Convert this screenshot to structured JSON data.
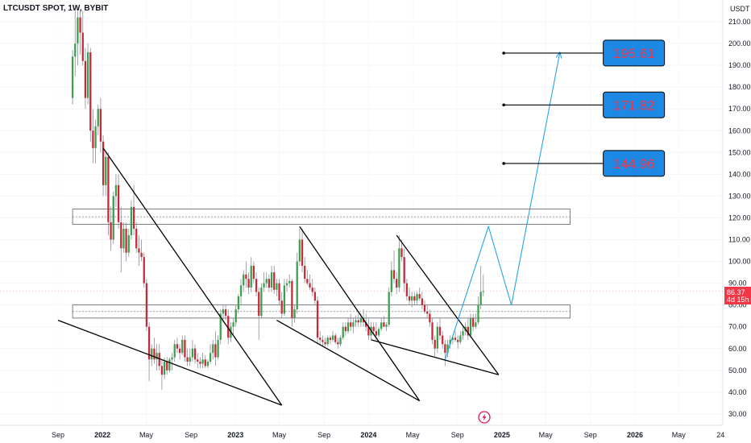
{
  "header": {
    "title": "LTCUSDT SPOT, 1W, BYBIT",
    "currency": "USDT"
  },
  "price_tag": {
    "price": "86.37",
    "countdown": "4d 15h",
    "color": "#f23645"
  },
  "colors": {
    "up": "#26a69a",
    "up_body": "#3aa04d",
    "down": "#c62a3a",
    "projection": "#29a3e6",
    "target_box": "#1e88e5",
    "target_text": "#f23645"
  },
  "chart_data": {
    "type": "candlestick",
    "title": "LTCUSDT SPOT, 1W, BYBIT",
    "ylabel": "USDT",
    "ylim": [
      25,
      215
    ],
    "y_ticks": [
      "30.00",
      "40.00",
      "50.00",
      "60.00",
      "70.00",
      "80.00",
      "90.00",
      "100.00",
      "110.00",
      "120.00",
      "130.00",
      "140.00",
      "150.00",
      "160.00",
      "170.00",
      "180.00",
      "190.00",
      "200.00",
      "210.00"
    ],
    "x_ticks": [
      {
        "label": "Sep",
        "date": "2021-09-01",
        "bold": false
      },
      {
        "label": "2022",
        "date": "2022-01-01",
        "bold": true
      },
      {
        "label": "May",
        "date": "2022-05-01",
        "bold": false
      },
      {
        "label": "Sep",
        "date": "2022-09-01",
        "bold": false
      },
      {
        "label": "2023",
        "date": "2023-01-01",
        "bold": true
      },
      {
        "label": "May",
        "date": "2023-05-01",
        "bold": false
      },
      {
        "label": "Sep",
        "date": "2023-09-01",
        "bold": false
      },
      {
        "label": "2024",
        "date": "2024-01-01",
        "bold": true
      },
      {
        "label": "May",
        "date": "2024-05-01",
        "bold": false
      },
      {
        "label": "Sep",
        "date": "2024-09-01",
        "bold": false
      },
      {
        "label": "2025",
        "date": "2025-01-01",
        "bold": true
      },
      {
        "label": "May",
        "date": "2025-05-01",
        "bold": false
      },
      {
        "label": "Sep",
        "date": "2025-09-01",
        "bold": false
      },
      {
        "label": "2026",
        "date": "2026-01-01",
        "bold": true
      },
      {
        "label": "May",
        "date": "2026-05-01",
        "bold": false
      },
      {
        "label": "24",
        "date": "2026-08-24",
        "bold": false
      }
    ],
    "last_price": 86.37,
    "candles": [
      [
        "2021-10-11",
        175,
        197,
        172,
        194
      ],
      [
        "2021-10-18",
        194,
        215,
        185,
        200
      ],
      [
        "2021-10-25",
        200,
        215,
        190,
        212
      ],
      [
        "2021-11-01",
        212,
        215,
        195,
        205
      ],
      [
        "2021-11-08",
        205,
        215,
        190,
        192
      ],
      [
        "2021-11-15",
        192,
        198,
        170,
        175
      ],
      [
        "2021-11-22",
        175,
        200,
        172,
        196
      ],
      [
        "2021-11-29",
        196,
        198,
        155,
        160
      ],
      [
        "2021-12-06",
        160,
        170,
        145,
        152
      ],
      [
        "2021-12-13",
        152,
        165,
        145,
        162
      ],
      [
        "2021-12-20",
        162,
        172,
        158,
        170
      ],
      [
        "2021-12-27",
        170,
        175,
        150,
        155
      ],
      [
        "2022-01-03",
        155,
        158,
        130,
        135
      ],
      [
        "2022-01-10",
        135,
        150,
        130,
        148
      ],
      [
        "2022-01-17",
        148,
        150,
        112,
        118
      ],
      [
        "2022-01-24",
        118,
        125,
        105,
        110
      ],
      [
        "2022-01-31",
        110,
        132,
        108,
        130
      ],
      [
        "2022-02-07",
        130,
        140,
        125,
        135
      ],
      [
        "2022-02-14",
        135,
        140,
        115,
        118
      ],
      [
        "2022-02-21",
        118,
        125,
        95,
        106
      ],
      [
        "2022-02-28",
        106,
        118,
        104,
        115
      ],
      [
        "2022-03-07",
        115,
        118,
        100,
        104
      ],
      [
        "2022-03-14",
        104,
        115,
        102,
        112
      ],
      [
        "2022-03-21",
        112,
        128,
        110,
        125
      ],
      [
        "2022-03-28",
        125,
        135,
        112,
        115
      ],
      [
        "2022-04-04",
        115,
        118,
        104,
        106
      ],
      [
        "2022-04-11",
        106,
        112,
        98,
        104
      ],
      [
        "2022-04-18",
        104,
        110,
        100,
        102
      ],
      [
        "2022-04-25",
        102,
        104,
        88,
        90
      ],
      [
        "2022-05-02",
        90,
        92,
        68,
        70
      ],
      [
        "2022-05-09",
        70,
        72,
        45,
        55
      ],
      [
        "2022-05-16",
        55,
        62,
        52,
        60
      ],
      [
        "2022-05-23",
        60,
        65,
        53,
        55
      ],
      [
        "2022-05-30",
        55,
        62,
        50,
        58
      ],
      [
        "2022-06-06",
        58,
        62,
        50,
        52
      ],
      [
        "2022-06-13",
        52,
        55,
        41,
        48
      ],
      [
        "2022-06-20",
        48,
        56,
        46,
        54
      ],
      [
        "2022-06-27",
        54,
        56,
        48,
        50
      ],
      [
        "2022-07-04",
        50,
        56,
        49,
        55
      ],
      [
        "2022-07-11",
        55,
        58,
        50,
        56
      ],
      [
        "2022-07-18",
        56,
        64,
        54,
        62
      ],
      [
        "2022-07-25",
        62,
        65,
        58,
        60
      ],
      [
        "2022-08-01",
        60,
        62,
        55,
        58
      ],
      [
        "2022-08-08",
        58,
        66,
        57,
        64
      ],
      [
        "2022-08-15",
        64,
        66,
        54,
        56
      ],
      [
        "2022-08-22",
        56,
        60,
        52,
        54
      ],
      [
        "2022-08-29",
        54,
        60,
        52,
        56
      ],
      [
        "2022-09-05",
        56,
        64,
        54,
        60
      ],
      [
        "2022-09-12",
        60,
        62,
        53,
        55
      ],
      [
        "2022-09-19",
        55,
        58,
        51,
        54
      ],
      [
        "2022-09-26",
        54,
        56,
        51,
        53
      ],
      [
        "2022-10-03",
        53,
        58,
        51,
        55
      ],
      [
        "2022-10-10",
        55,
        57,
        51,
        52
      ],
      [
        "2022-10-17",
        52,
        55,
        51,
        54
      ],
      [
        "2022-10-24",
        54,
        62,
        53,
        58
      ],
      [
        "2022-10-31",
        58,
        64,
        55,
        62
      ],
      [
        "2022-11-07",
        62,
        68,
        52,
        56
      ],
      [
        "2022-11-14",
        56,
        66,
        55,
        64
      ],
      [
        "2022-11-21",
        64,
        78,
        62,
        76
      ],
      [
        "2022-11-28",
        76,
        80,
        72,
        78
      ],
      [
        "2022-12-05",
        78,
        80,
        73,
        75
      ],
      [
        "2022-12-12",
        75,
        78,
        62,
        65
      ],
      [
        "2022-12-19",
        65,
        72,
        63,
        70
      ],
      [
        "2022-12-26",
        70,
        74,
        66,
        72
      ],
      [
        "2023-01-02",
        72,
        80,
        70,
        78
      ],
      [
        "2023-01-09",
        78,
        85,
        76,
        84
      ],
      [
        "2023-01-16",
        84,
        92,
        80,
        89
      ],
      [
        "2023-01-23",
        89,
        96,
        86,
        94
      ],
      [
        "2023-01-30",
        94,
        100,
        88,
        92
      ],
      [
        "2023-02-06",
        92,
        95,
        85,
        88
      ],
      [
        "2023-02-13",
        88,
        102,
        86,
        98
      ],
      [
        "2023-02-20",
        98,
        100,
        90,
        92
      ],
      [
        "2023-02-27",
        92,
        95,
        84,
        86
      ],
      [
        "2023-03-06",
        86,
        88,
        64,
        75
      ],
      [
        "2023-03-13",
        75,
        90,
        74,
        88
      ],
      [
        "2023-03-20",
        88,
        95,
        86,
        90
      ],
      [
        "2023-03-27",
        90,
        95,
        88,
        92
      ],
      [
        "2023-04-03",
        92,
        94,
        86,
        88
      ],
      [
        "2023-04-10",
        88,
        98,
        86,
        95
      ],
      [
        "2023-04-17",
        95,
        98,
        85,
        87
      ],
      [
        "2023-04-24",
        87,
        92,
        84,
        90
      ],
      [
        "2023-05-01",
        90,
        92,
        80,
        82
      ],
      [
        "2023-05-08",
        82,
        86,
        74,
        76
      ],
      [
        "2023-05-15",
        76,
        92,
        75,
        89
      ],
      [
        "2023-05-22",
        89,
        92,
        86,
        90
      ],
      [
        "2023-05-29",
        90,
        94,
        88,
        91
      ],
      [
        "2023-06-05",
        91,
        92,
        70,
        74
      ],
      [
        "2023-06-12",
        74,
        80,
        72,
        78
      ],
      [
        "2023-06-19",
        78,
        104,
        76,
        100
      ],
      [
        "2023-06-26",
        100,
        115,
        98,
        110
      ],
      [
        "2023-07-03",
        110,
        115,
        95,
        98
      ],
      [
        "2023-07-10",
        98,
        102,
        90,
        92
      ],
      [
        "2023-07-17",
        92,
        96,
        89,
        90
      ],
      [
        "2023-07-24",
        90,
        94,
        87,
        88
      ],
      [
        "2023-07-31",
        88,
        92,
        84,
        86
      ],
      [
        "2023-08-07",
        86,
        88,
        80,
        82
      ],
      [
        "2023-08-14",
        82,
        84,
        62,
        65
      ],
      [
        "2023-08-21",
        65,
        68,
        62,
        64
      ],
      [
        "2023-08-28",
        64,
        66,
        61,
        63
      ],
      [
        "2023-09-04",
        63,
        65,
        61,
        62
      ],
      [
        "2023-09-11",
        62,
        66,
        61,
        65
      ],
      [
        "2023-09-18",
        65,
        66,
        62,
        64
      ],
      [
        "2023-09-25",
        64,
        68,
        63,
        66
      ],
      [
        "2023-10-02",
        66,
        67,
        62,
        63
      ],
      [
        "2023-10-09",
        63,
        65,
        60,
        62
      ],
      [
        "2023-10-16",
        62,
        66,
        61,
        65
      ],
      [
        "2023-10-23",
        65,
        72,
        64,
        70
      ],
      [
        "2023-10-30",
        70,
        72,
        66,
        68
      ],
      [
        "2023-11-06",
        68,
        74,
        67,
        72
      ],
      [
        "2023-11-13",
        72,
        76,
        68,
        70
      ],
      [
        "2023-11-20",
        70,
        74,
        67,
        72
      ],
      [
        "2023-11-27",
        72,
        75,
        70,
        73
      ],
      [
        "2023-12-04",
        73,
        76,
        70,
        72
      ],
      [
        "2023-12-11",
        72,
        76,
        70,
        74
      ],
      [
        "2023-12-18",
        74,
        78,
        70,
        72
      ],
      [
        "2023-12-25",
        72,
        76,
        68,
        70
      ],
      [
        "2024-01-01",
        70,
        74,
        64,
        66
      ],
      [
        "2024-01-08",
        66,
        72,
        64,
        70
      ],
      [
        "2024-01-15",
        70,
        72,
        66,
        68
      ],
      [
        "2024-01-22",
        68,
        72,
        64,
        66
      ],
      [
        "2024-01-29",
        66,
        70,
        65,
        69
      ],
      [
        "2024-02-05",
        69,
        74,
        68,
        72
      ],
      [
        "2024-02-12",
        72,
        75,
        70,
        70
      ],
      [
        "2024-02-19",
        70,
        72,
        68,
        71
      ],
      [
        "2024-02-26",
        71,
        88,
        70,
        86
      ],
      [
        "2024-03-04",
        86,
        100,
        84,
        96
      ],
      [
        "2024-03-11",
        96,
        105,
        90,
        92
      ],
      [
        "2024-03-18",
        92,
        95,
        85,
        88
      ],
      [
        "2024-03-25",
        88,
        112,
        86,
        106
      ],
      [
        "2024-04-01",
        106,
        110,
        100,
        102
      ],
      [
        "2024-04-08",
        102,
        106,
        86,
        90
      ],
      [
        "2024-04-15",
        90,
        92,
        82,
        84
      ],
      [
        "2024-04-22",
        84,
        88,
        80,
        82
      ],
      [
        "2024-04-29",
        82,
        86,
        79,
        84
      ],
      [
        "2024-05-06",
        84,
        86,
        80,
        82
      ],
      [
        "2024-05-13",
        82,
        86,
        80,
        85
      ],
      [
        "2024-05-20",
        85,
        88,
        82,
        83
      ],
      [
        "2024-05-27",
        83,
        86,
        78,
        80
      ],
      [
        "2024-06-03",
        80,
        82,
        76,
        77
      ],
      [
        "2024-06-10",
        77,
        80,
        74,
        76
      ],
      [
        "2024-06-17",
        76,
        78,
        70,
        72
      ],
      [
        "2024-06-24",
        72,
        74,
        62,
        64
      ],
      [
        "2024-07-01",
        64,
        66,
        56,
        60
      ],
      [
        "2024-07-08",
        60,
        72,
        58,
        70
      ],
      [
        "2024-07-15",
        70,
        74,
        64,
        66
      ],
      [
        "2024-07-22",
        66,
        68,
        60,
        62
      ],
      [
        "2024-07-29",
        62,
        64,
        52,
        58
      ],
      [
        "2024-08-05",
        58,
        64,
        56,
        62
      ],
      [
        "2024-08-12",
        62,
        66,
        60,
        64
      ],
      [
        "2024-08-19",
        64,
        66,
        62,
        65
      ],
      [
        "2024-08-26",
        65,
        68,
        63,
        64
      ],
      [
        "2024-09-02",
        64,
        66,
        60,
        63
      ],
      [
        "2024-09-09",
        63,
        68,
        62,
        66
      ],
      [
        "2024-09-16",
        66,
        70,
        64,
        68
      ],
      [
        "2024-09-23",
        68,
        72,
        66,
        70
      ],
      [
        "2024-09-30",
        70,
        74,
        64,
        66
      ],
      [
        "2024-10-07",
        66,
        76,
        65,
        74
      ],
      [
        "2024-10-14",
        74,
        76,
        68,
        70
      ],
      [
        "2024-10-21",
        70,
        76,
        69,
        72
      ],
      [
        "2024-10-28",
        72,
        84,
        71,
        80
      ],
      [
        "2024-11-04",
        80,
        98,
        78,
        86
      ],
      [
        "2024-11-11",
        86,
        94,
        84,
        86.37
      ]
    ],
    "resistance_zone": {
      "low": 117,
      "high": 124
    },
    "support_zone": {
      "low": 74,
      "high": 80
    },
    "zone_start": "2021-10-11",
    "zone_end": "2025-07-07",
    "trendlines": [
      [
        [
          "2022-01-03",
          152
        ],
        [
          "2023-05-08",
          34
        ]
      ],
      [
        [
          "2021-09-01",
          73
        ],
        [
          "2023-05-08",
          34
        ]
      ],
      [
        [
          "2023-06-26",
          116
        ],
        [
          "2024-05-20",
          36
        ]
      ],
      [
        [
          "2023-04-24",
          73
        ],
        [
          "2024-05-20",
          36
        ]
      ],
      [
        [
          "2024-03-18",
          112
        ],
        [
          "2024-12-23",
          48
        ]
      ],
      [
        [
          "2024-01-08",
          64
        ],
        [
          "2024-12-23",
          48
        ]
      ]
    ],
    "projection": [
      [
        "2024-07-29",
        55
      ],
      [
        "2024-11-25",
        116
      ],
      [
        "2025-01-27",
        80
      ],
      [
        "2025-06-09",
        196
      ]
    ],
    "targets": [
      {
        "value": 144.96,
        "label": "144.96"
      },
      {
        "value": 171.82,
        "label": "171.82"
      },
      {
        "value": 195.61,
        "label": "195.61"
      }
    ],
    "target_line_start": "2025-01-06",
    "target_line_end": "2025-10-06"
  }
}
